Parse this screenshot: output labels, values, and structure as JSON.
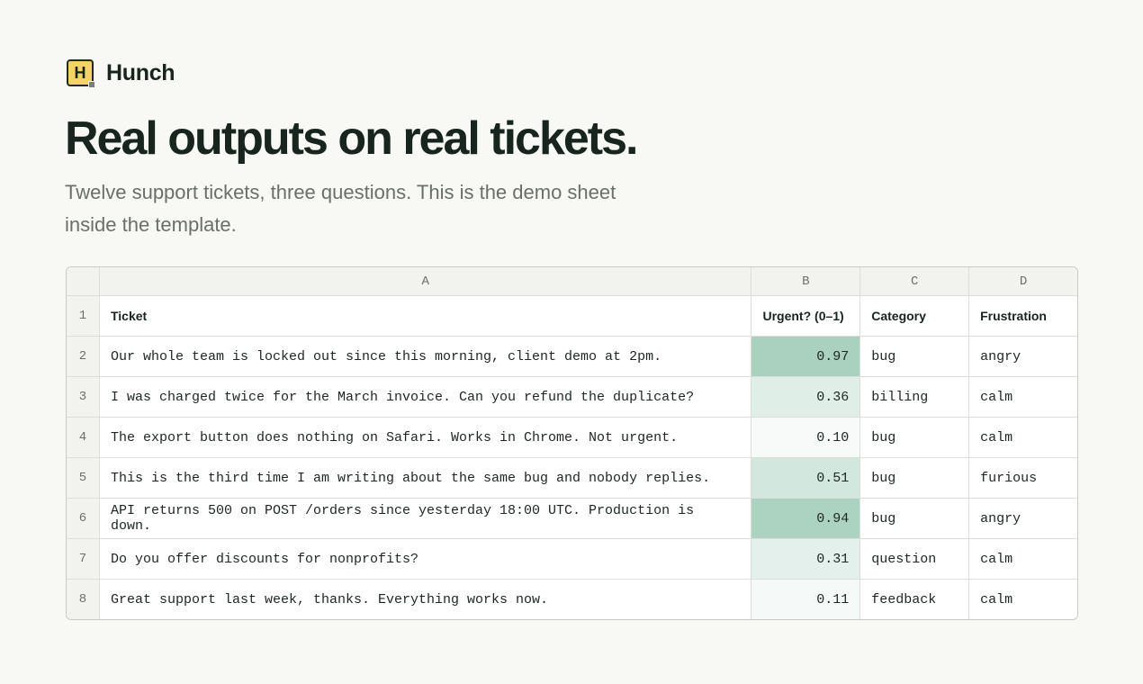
{
  "brand": {
    "mark": "H",
    "name": "Hunch"
  },
  "header": {
    "title": "Real outputs on real tickets.",
    "subtitle": "Twelve support tickets, three questions. This is the demo sheet inside the template."
  },
  "table": {
    "columns": [
      "A",
      "B",
      "C",
      "D"
    ],
    "row_numbers": [
      1,
      2,
      3,
      4,
      5,
      6,
      7,
      8
    ],
    "rows": [
      [
        "Ticket",
        "Urgent? (0–1)",
        "Category",
        "Frustration"
      ],
      [
        "Our whole team is locked out since this morning, client demo at 2pm.",
        "0.97",
        "bug",
        "angry"
      ],
      [
        "I was charged twice for the March invoice. Can you refund the duplicate?",
        "0.36",
        "billing",
        "calm"
      ],
      [
        "The export button does nothing on Safari. Works in Chrome. Not urgent.",
        "0.10",
        "bug",
        "calm"
      ],
      [
        "This is the third time I am writing about the same bug and nobody replies.",
        "0.51",
        "bug",
        "furious"
      ],
      [
        "API returns 500 on POST /orders since yesterday 18:00 UTC. Production is down.",
        "0.94",
        "bug",
        "angry"
      ],
      [
        "Do you offer discounts for nonprofits?",
        "0.31",
        "question",
        "calm"
      ],
      [
        "Great support last week, thanks. Everything works now.",
        "0.11",
        "feedback",
        "calm"
      ]
    ]
  }
}
